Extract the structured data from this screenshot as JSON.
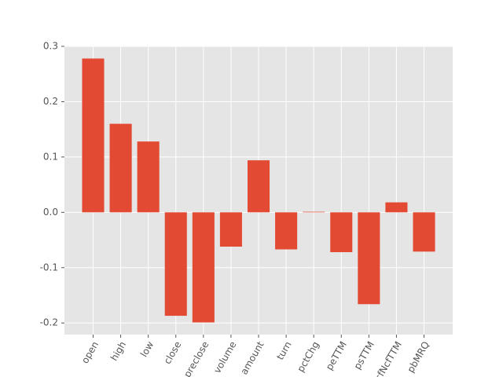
{
  "chart_data": {
    "type": "bar",
    "categories": [
      "open",
      "high",
      "low",
      "close",
      "preclose",
      "volume",
      "amount",
      "turn",
      "pctChg",
      "peTTM",
      "psTTM",
      "pcfNcfTTM",
      "pbMRQ"
    ],
    "values": [
      0.278,
      0.16,
      0.128,
      -0.187,
      -0.199,
      -0.062,
      0.094,
      -0.067,
      0.001,
      -0.072,
      -0.166,
      0.018,
      -0.071
    ],
    "color": "#E24A33",
    "ylim": [
      -0.221,
      0.3
    ],
    "yticks": [
      {
        "value": -0.2,
        "label": "-0.2"
      },
      {
        "value": -0.1,
        "label": "-0.1"
      },
      {
        "value": 0,
        "label": "0.0"
      },
      {
        "value": 0.1,
        "label": "0.1"
      },
      {
        "value": 0.2,
        "label": "0.2"
      },
      {
        "value": 0.3,
        "label": "0.3"
      }
    ],
    "grid": true
  }
}
